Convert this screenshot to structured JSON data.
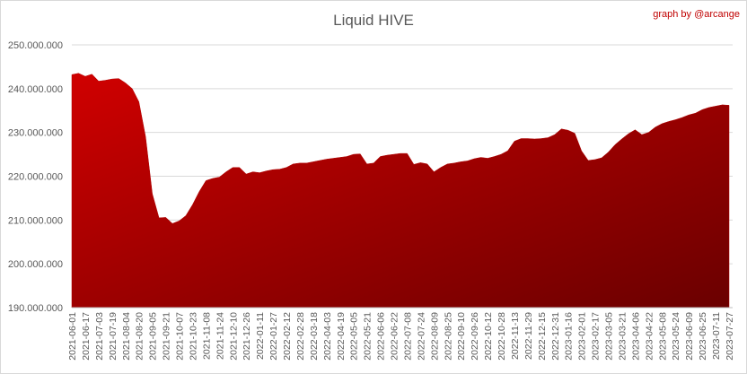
{
  "chart_data": {
    "type": "area",
    "title": "Liquid HIVE",
    "annotation": "graph by @arcange",
    "color": "#b00000",
    "categories": [
      "2021-06-01",
      null,
      "2021-06-17",
      null,
      "2021-07-03",
      null,
      "2021-07-19",
      null,
      "2021-08-04",
      null,
      "2021-08-20",
      null,
      "2021-09-05",
      null,
      "2021-09-21",
      null,
      "2021-10-07",
      null,
      "2021-10-23",
      null,
      "2021-11-08",
      null,
      "2021-11-24",
      null,
      "2021-12-10",
      null,
      "2021-12-26",
      null,
      "2022-01-11",
      null,
      "2022-01-27",
      null,
      "2022-02-12",
      null,
      "2022-02-28",
      null,
      "2022-03-18",
      null,
      "2022-04-03",
      null,
      "2022-04-19",
      null,
      "2022-05-05",
      null,
      "2022-05-21",
      null,
      "2022-06-06",
      null,
      "2022-06-22",
      null,
      "2022-07-08",
      null,
      "2022-07-24",
      null,
      "2022-08-09",
      null,
      "2022-08-25",
      null,
      "2022-09-10",
      null,
      "2022-09-26",
      null,
      "2022-10-12",
      null,
      "2022-10-28",
      null,
      "2022-11-13",
      null,
      "2022-11-29",
      null,
      "2022-12-15",
      null,
      "2022-12-31",
      null,
      "2023-01-16",
      null,
      "2023-02-01",
      null,
      "2023-02-17",
      null,
      "2023-03-05",
      null,
      "2023-03-21",
      null,
      "2023-04-06",
      null,
      "2023-04-22",
      null,
      "2023-05-08",
      null,
      "2023-05-24",
      null,
      "2023-06-09",
      null,
      "2023-06-25",
      null,
      "2023-07-11",
      null,
      "2023-07-27"
    ],
    "values": [
      243200000,
      243500000,
      242800000,
      243300000,
      241700000,
      241900000,
      242200000,
      242300000,
      241300000,
      240000000,
      237000000,
      229000000,
      216000000,
      210500000,
      210600000,
      209200000,
      209800000,
      211000000,
      213500000,
      216500000,
      219000000,
      219500000,
      219800000,
      221000000,
      222000000,
      222000000,
      220500000,
      221000000,
      220800000,
      221200000,
      221500000,
      221600000,
      222000000,
      222800000,
      223000000,
      223000000,
      223300000,
      223600000,
      223900000,
      224100000,
      224300000,
      224500000,
      225000000,
      225100000,
      222800000,
      223000000,
      224500000,
      224800000,
      225000000,
      225200000,
      225200000,
      222700000,
      223100000,
      222800000,
      221000000,
      222000000,
      222800000,
      223000000,
      223300000,
      223500000,
      224000000,
      224300000,
      224100000,
      224500000,
      225000000,
      225800000,
      228000000,
      228600000,
      228600000,
      228500000,
      228600000,
      228800000,
      229500000,
      230800000,
      230500000,
      229800000,
      225800000,
      223600000,
      223800000,
      224200000,
      225500000,
      227200000,
      228500000,
      229700000,
      230600000,
      229500000,
      230000000,
      231200000,
      232000000,
      232500000,
      232900000,
      233400000,
      234000000,
      234400000,
      235200000,
      235700000,
      236000000,
      236300000,
      236200000
    ],
    "ylim": [
      190000000,
      250000000
    ],
    "yticks": [
      {
        "value": 190000000,
        "label": "190.000.000"
      },
      {
        "value": 200000000,
        "label": "200.000.000"
      },
      {
        "value": 210000000,
        "label": "210.000.000"
      },
      {
        "value": 220000000,
        "label": "220.000.000"
      },
      {
        "value": 230000000,
        "label": "230.000.000"
      },
      {
        "value": 240000000,
        "label": "240.000.000"
      },
      {
        "value": 250000000,
        "label": "250.000.000"
      }
    ],
    "grid": true
  }
}
